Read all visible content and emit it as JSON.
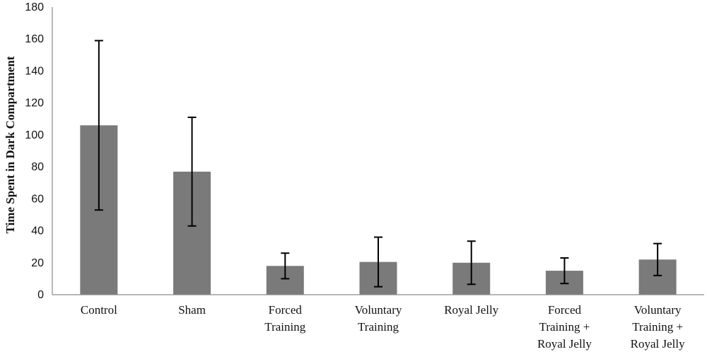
{
  "chart_data": {
    "type": "bar",
    "title": "",
    "xlabel": "",
    "ylabel": "Time Spent in Dark Compartment",
    "ylim": [
      0,
      180
    ],
    "yticks": [
      0,
      20,
      40,
      60,
      80,
      100,
      120,
      140,
      160,
      180
    ],
    "grid": false,
    "legend": "none",
    "bar_color": "#7a7a7a",
    "categories": [
      [
        "Control"
      ],
      [
        "Sham"
      ],
      [
        "Forced",
        "Training"
      ],
      [
        "Voluntary",
        "Training"
      ],
      [
        "Royal Jelly"
      ],
      [
        "Forced",
        "Training +",
        "Royal Jelly"
      ],
      [
        "Voluntary",
        "Training +",
        "Royal Jelly"
      ]
    ],
    "values": [
      106,
      77,
      18,
      20.5,
      20,
      15,
      22
    ],
    "error": [
      53,
      34,
      8,
      15.5,
      13.5,
      8,
      10
    ]
  }
}
